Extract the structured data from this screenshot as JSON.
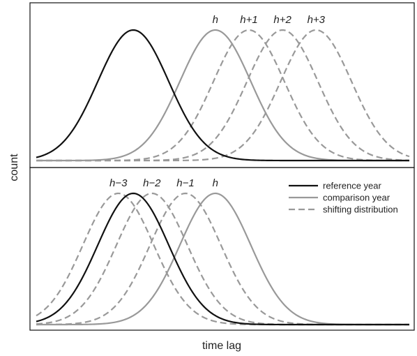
{
  "chart_data": {
    "type": "line",
    "xlabel": "time lag",
    "ylabel": "count",
    "grid": false,
    "legend_placement": "top-right of lower panel",
    "colors": {
      "reference": "#111111",
      "comparison": "#999999",
      "shifting": "#999999",
      "frame": "#111111"
    },
    "legend": [
      {
        "key": "reference",
        "label": "reference year",
        "style": "solid"
      },
      {
        "key": "comparison",
        "label": "comparison year",
        "style": "solid"
      },
      {
        "key": "shifting",
        "label": "shifting distribution",
        "style": "dashed"
      }
    ],
    "sigma": 0.95,
    "panels": [
      {
        "name": "upper",
        "xlim": [
          0,
          10
        ],
        "series": [
          {
            "key": "reference",
            "style": "solid",
            "mean": 2.6,
            "peak": 1.0
          },
          {
            "key": "comparison",
            "style": "solid",
            "mean": 4.8,
            "peak": 1.0,
            "label": "h"
          },
          {
            "key": "shifting",
            "style": "dashed",
            "mean": 5.7,
            "peak": 1.0,
            "label": "h+1"
          },
          {
            "key": "shifting",
            "style": "dashed",
            "mean": 6.6,
            "peak": 1.0,
            "label": "h+2"
          },
          {
            "key": "shifting",
            "style": "dashed",
            "mean": 7.5,
            "peak": 1.0,
            "label": "h+3"
          }
        ]
      },
      {
        "name": "lower",
        "xlim": [
          0,
          10
        ],
        "series": [
          {
            "key": "reference",
            "style": "solid",
            "mean": 2.6,
            "peak": 1.0
          },
          {
            "key": "comparison",
            "style": "solid",
            "mean": 4.8,
            "peak": 1.0,
            "label": "h"
          },
          {
            "key": "shifting",
            "style": "dashed",
            "mean": 2.2,
            "peak": 1.0,
            "label": "h−3"
          },
          {
            "key": "shifting",
            "style": "dashed",
            "mean": 3.1,
            "peak": 1.0,
            "label": "h−2"
          },
          {
            "key": "shifting",
            "style": "dashed",
            "mean": 4.0,
            "peak": 1.0,
            "label": "h−1"
          }
        ]
      }
    ]
  }
}
